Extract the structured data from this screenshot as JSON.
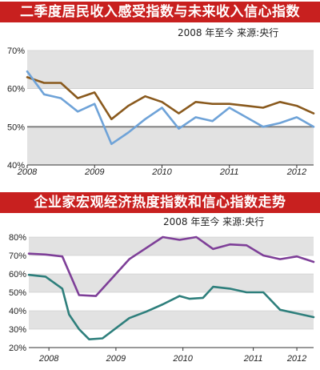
{
  "chart_data": [
    {
      "type": "line",
      "title": "二季度居民收入感受指数与未来收入信心指数",
      "subtitle": "2008 年至今   来源:央行",
      "ylim": [
        40,
        70
      ],
      "yticks": [
        "40%",
        "50%",
        "60%",
        "70%"
      ],
      "xlim": [
        2008.0,
        2012.25
      ],
      "xticks": [
        {
          "label": "2008",
          "x": 2008.0
        },
        {
          "label": "2009",
          "x": 2009.0
        },
        {
          "label": "2010",
          "x": 2010.0
        },
        {
          "label": "2011",
          "x": 2011.0
        },
        {
          "label": "2012",
          "x": 2012.0
        }
      ],
      "reference_line": 50,
      "grid_bands": true,
      "series": [
        {
          "color": "#8a5a1e",
          "points": [
            [
              2008.0,
              63.0
            ],
            [
              2008.25,
              61.5
            ],
            [
              2008.5,
              61.5
            ],
            [
              2008.75,
              57.5
            ],
            [
              2009.0,
              59.0
            ],
            [
              2009.25,
              52.0
            ],
            [
              2009.5,
              55.5
            ],
            [
              2009.75,
              58.0
            ],
            [
              2010.0,
              56.5
            ],
            [
              2010.25,
              53.5
            ],
            [
              2010.5,
              56.5
            ],
            [
              2010.75,
              56.0
            ],
            [
              2011.0,
              56.0
            ],
            [
              2011.25,
              55.5
            ],
            [
              2011.5,
              55.0
            ],
            [
              2011.75,
              56.5
            ],
            [
              2012.0,
              55.5
            ],
            [
              2012.25,
              53.5
            ]
          ]
        },
        {
          "color": "#6fa3d8",
          "points": [
            [
              2008.0,
              64.5
            ],
            [
              2008.25,
              58.5
            ],
            [
              2008.5,
              57.5
            ],
            [
              2008.75,
              54.0
            ],
            [
              2009.0,
              56.0
            ],
            [
              2009.25,
              45.5
            ],
            [
              2009.5,
              48.5
            ],
            [
              2009.75,
              52.0
            ],
            [
              2010.0,
              55.0
            ],
            [
              2010.25,
              49.5
            ],
            [
              2010.5,
              52.5
            ],
            [
              2010.75,
              51.5
            ],
            [
              2011.0,
              55.0
            ],
            [
              2011.25,
              52.5
            ],
            [
              2011.5,
              50.0
            ],
            [
              2011.75,
              51.0
            ],
            [
              2012.0,
              52.5
            ],
            [
              2012.25,
              50.0
            ]
          ]
        }
      ]
    },
    {
      "type": "line",
      "title": "企业家宏观经济热度指数和信心指数走势",
      "subtitle": "2008 年至今   来源:央行",
      "ylim": [
        20,
        80
      ],
      "yticks": [
        "20%",
        "30%",
        "40%",
        "50%",
        "60%",
        "70%",
        "80%"
      ],
      "xlim": [
        2008.0,
        2012.25
      ],
      "xticks": [
        {
          "label": "2008",
          "x": 2008.3
        },
        {
          "label": "2009",
          "x": 2009.3
        },
        {
          "label": "2010",
          "x": 2010.3
        },
        {
          "label": "2011",
          "x": 2011.35
        },
        {
          "label": "2012",
          "x": 2012.0
        }
      ],
      "grid_bands": true,
      "series": [
        {
          "color": "#7e3f98",
          "points": [
            [
              2008.0,
              71.0
            ],
            [
              2008.25,
              70.5
            ],
            [
              2008.5,
              69.5
            ],
            [
              2008.75,
              48.5
            ],
            [
              2009.0,
              48.0
            ],
            [
              2009.25,
              58.0
            ],
            [
              2009.5,
              68.0
            ],
            [
              2009.75,
              74.0
            ],
            [
              2010.0,
              80.0
            ],
            [
              2010.25,
              78.5
            ],
            [
              2010.5,
              80.0
            ],
            [
              2010.75,
              73.5
            ],
            [
              2011.0,
              76.0
            ],
            [
              2011.25,
              75.5
            ],
            [
              2011.5,
              70.0
            ],
            [
              2011.75,
              68.0
            ],
            [
              2012.0,
              69.5
            ],
            [
              2012.25,
              66.5
            ]
          ]
        },
        {
          "color": "#2e7f7c",
          "points": [
            [
              2008.0,
              59.5
            ],
            [
              2008.25,
              58.5
            ],
            [
              2008.5,
              52.0
            ],
            [
              2008.6,
              38.0
            ],
            [
              2008.75,
              30.0
            ],
            [
              2008.9,
              24.5
            ],
            [
              2009.1,
              25.0
            ],
            [
              2009.5,
              36.0
            ],
            [
              2009.75,
              39.5
            ],
            [
              2010.0,
              43.5
            ],
            [
              2010.25,
              48.0
            ],
            [
              2010.4,
              46.5
            ],
            [
              2010.6,
              47.0
            ],
            [
              2010.75,
              53.0
            ],
            [
              2011.0,
              52.0
            ],
            [
              2011.25,
              50.0
            ],
            [
              2011.5,
              50.0
            ],
            [
              2011.75,
              40.5
            ],
            [
              2012.0,
              38.5
            ],
            [
              2012.25,
              36.5
            ]
          ]
        }
      ]
    }
  ]
}
